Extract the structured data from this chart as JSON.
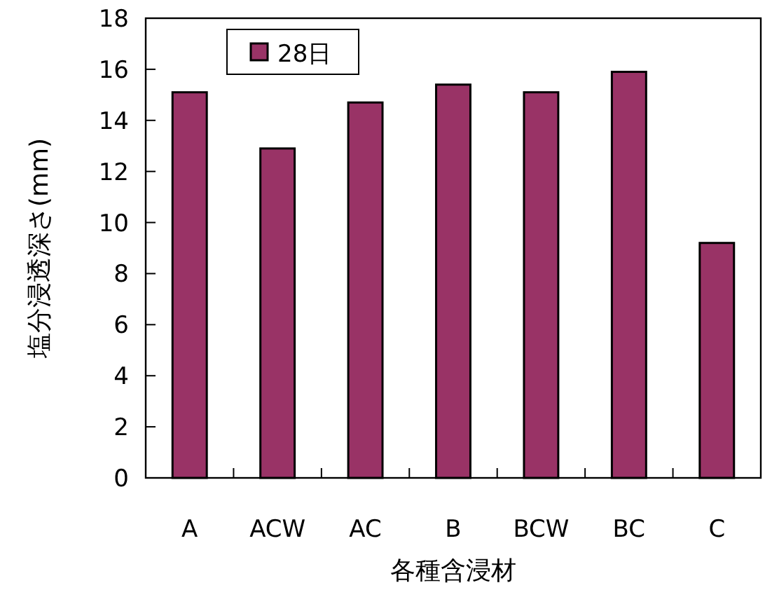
{
  "chart_data": {
    "type": "bar",
    "xlabel": "各種含浸材",
    "ylabel": "塩分浸透深さ(mm)",
    "categories": [
      "A",
      "ACW",
      "AC",
      "B",
      "BCW",
      "BC",
      "C"
    ],
    "series": [
      {
        "name": "28日",
        "color": "#993366",
        "values": [
          15.1,
          12.9,
          14.7,
          15.4,
          15.1,
          15.9,
          9.2
        ]
      }
    ],
    "ylim": [
      0,
      18
    ],
    "yticks": [
      0,
      2,
      4,
      6,
      8,
      10,
      12,
      14,
      16,
      18
    ],
    "grid": false,
    "legend": "top left"
  }
}
